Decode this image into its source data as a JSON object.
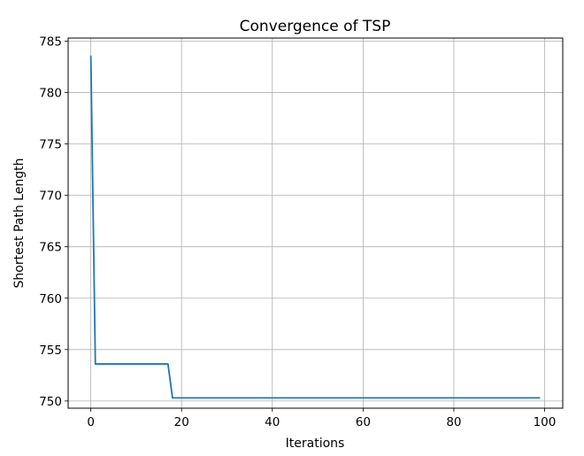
{
  "chart_data": {
    "type": "line",
    "title": "Convergence of TSP",
    "xlabel": "Iterations",
    "ylabel": "Shortest Path Length",
    "xlim": [
      -5,
      104
    ],
    "ylim": [
      749.3,
      785.3
    ],
    "xticks": [
      0,
      20,
      40,
      60,
      80,
      100
    ],
    "yticks": [
      750,
      755,
      760,
      765,
      770,
      775,
      780,
      785
    ],
    "grid": true,
    "series": [
      {
        "color": "#1f77b4",
        "x": [
          0,
          1,
          17,
          18,
          99
        ],
        "y": [
          783.6,
          753.6,
          753.6,
          750.3,
          750.3
        ]
      }
    ]
  }
}
